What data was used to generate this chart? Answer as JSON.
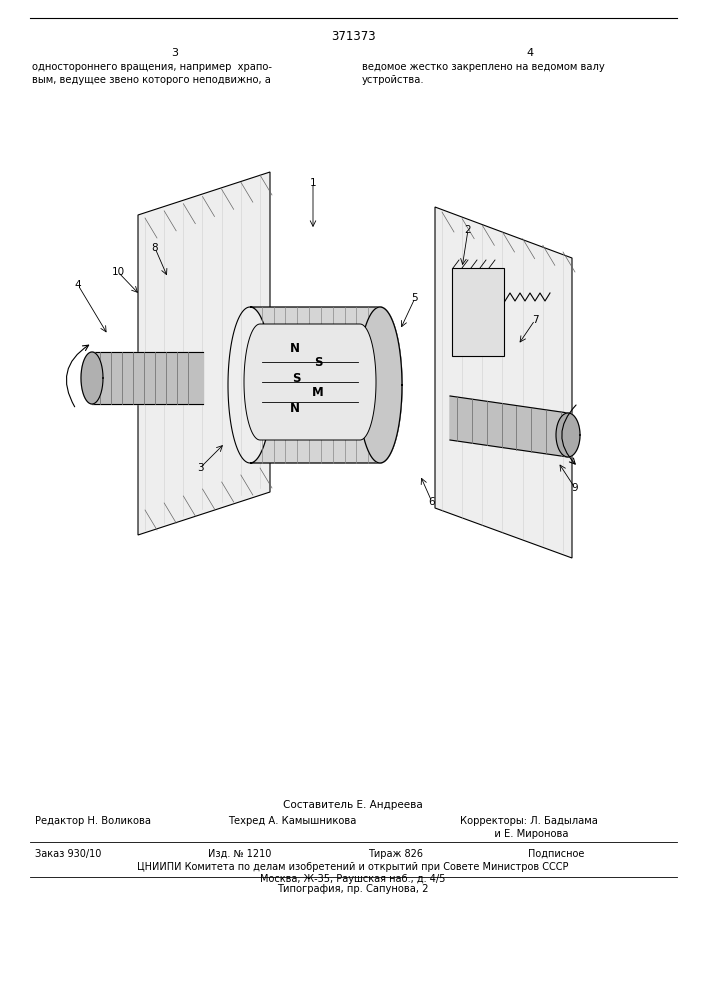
{
  "page_number": "371373",
  "col_left": "3",
  "col_right": "4",
  "text_left1": "одностороннего вращения, например  храпо-",
  "text_left2": "вым, ведущее звено которого неподвижно, а",
  "text_right1": "ведомое жестко закреплено на ведомом валу",
  "text_right2": "устройства.",
  "footer_compiler": "Составитель Е. Андреева",
  "footer_editor": "Редактор Н. Воликова",
  "footer_techred": "Техред А. Камышникова",
  "footer_corr1": "Корректоры: Л. Бадылама",
  "footer_corr2": "           и Е. Миронова",
  "footer_order": "Заказ 930/10",
  "footer_izd": "Изд. № 1210",
  "footer_tirazh": "Тираж 826",
  "footer_podpisnoe": "Подписное",
  "footer_tsniipi": "ЦНИИПИ Комитета по делам изобретений и открытий при Совете Министров СССР",
  "footer_address": "Москва, Ж-35, Раушская наб., д. 4/5",
  "footer_tipografia": "Типография, пр. Сапунова, 2",
  "bg_color": "#ffffff"
}
